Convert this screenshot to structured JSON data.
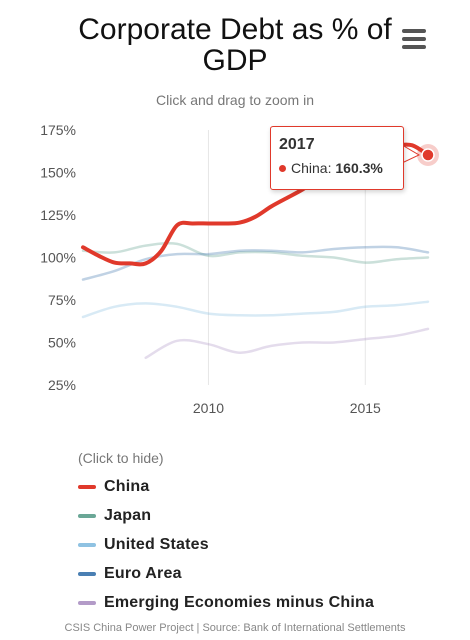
{
  "header": {
    "title": "Corporate Debt as % of GDP",
    "subtitle": "Click and drag to zoom in",
    "menu_icon": "hamburger-menu-icon"
  },
  "chart_data": {
    "type": "line",
    "title": "Corporate Debt as % of GDP",
    "xlabel": "",
    "ylabel": "",
    "xlim": [
      2006,
      2017
    ],
    "ylim": [
      25,
      175
    ],
    "x_ticks": [
      "2010",
      "2015"
    ],
    "y_ticks": [
      "25%",
      "50%",
      "75%",
      "100%",
      "125%",
      "150%",
      "175%"
    ],
    "grid": "vertical lines at x ticks",
    "legend_position": "bottom",
    "series": [
      {
        "name": "China",
        "color": "#e0392b",
        "x": [
          2006.0,
          2006.5,
          2007.0,
          2007.5,
          2008.0,
          2008.5,
          2009.0,
          2009.5,
          2010.0,
          2010.5,
          2011.0,
          2011.5,
          2012.0,
          2012.5,
          2013.0,
          2013.5,
          2014.0,
          2014.5,
          2015.0,
          2015.5,
          2016.0,
          2016.5,
          2017.0
        ],
        "y": [
          106,
          101,
          97,
          96.5,
          96.5,
          104,
          119,
          120,
          120,
          120,
          120.5,
          124,
          130,
          135,
          140,
          146,
          152,
          157,
          162,
          165,
          166,
          166,
          160.3
        ]
      },
      {
        "name": "Japan",
        "color": "#6aa796",
        "x": [
          2006,
          2007,
          2008,
          2009,
          2010,
          2011,
          2012,
          2013,
          2014,
          2015,
          2016,
          2017
        ],
        "y": [
          104,
          103,
          107,
          108,
          101,
          103,
          103,
          101,
          100,
          97,
          99,
          100
        ]
      },
      {
        "name": "United States",
        "color": "#8fc2e2",
        "x": [
          2006,
          2007,
          2008,
          2009,
          2010,
          2011,
          2012,
          2013,
          2014,
          2015,
          2016,
          2017
        ],
        "y": [
          65,
          71,
          73,
          71,
          67,
          66,
          66,
          67,
          68,
          71,
          72,
          74
        ]
      },
      {
        "name": "Euro Area",
        "color": "#4a7fb3",
        "x": [
          2006,
          2007,
          2008,
          2009,
          2010,
          2011,
          2012,
          2013,
          2014,
          2015,
          2016,
          2017
        ],
        "y": [
          87,
          92,
          99,
          102,
          102,
          104,
          104,
          103,
          105,
          106,
          106,
          103
        ]
      },
      {
        "name": "Emerging Economies minus China",
        "color": "#b39bc8",
        "x": [
          2008,
          2009,
          2010,
          2011,
          2012,
          2013,
          2014,
          2015,
          2016,
          2017
        ],
        "y": [
          41,
          51,
          49,
          44,
          48,
          50,
          50,
          52,
          54,
          58
        ]
      }
    ],
    "highlight": {
      "series": "China",
      "x": 2017,
      "y": 160.3
    }
  },
  "tooltip": {
    "year": "2017",
    "series": "China",
    "separator": ":",
    "value": "160.3%"
  },
  "legend": {
    "hint": "(Click to hide)",
    "items": [
      "China",
      "Japan",
      "United States",
      "Euro Area",
      "Emerging Economies minus China"
    ]
  },
  "credits": "CSIS China Power Project | Source: Bank of International Settlements"
}
